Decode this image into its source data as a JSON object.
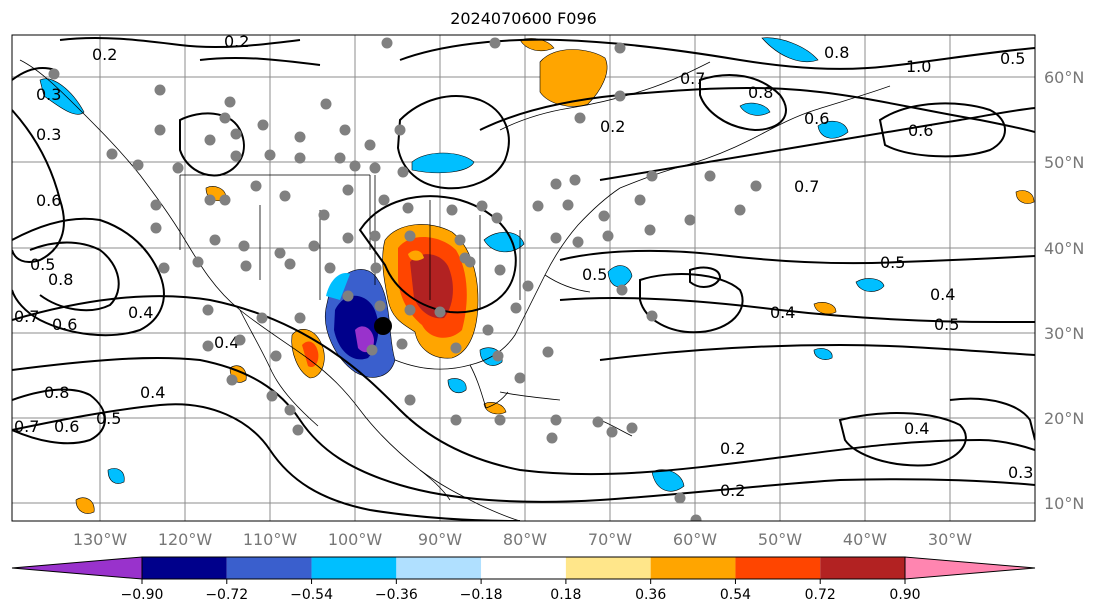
{
  "title": "2024070600 F096",
  "colors": {
    "land_border": "#000000",
    "grid": "#888888",
    "station": "#808080",
    "contour": "#000000",
    "target_marker": "#000000"
  },
  "lon_labels": [
    "130°W",
    "120°W",
    "110°W",
    "100°W",
    "90°W",
    "80°W",
    "70°W",
    "60°W",
    "50°W",
    "40°W",
    "30°W"
  ],
  "lat_labels": [
    "60°N",
    "50°N",
    "40°N",
    "30°N",
    "20°N",
    "10°N"
  ],
  "contour_labels": [
    "0.2",
    "0.2",
    "0.3",
    "0.3",
    "0.4",
    "0.4",
    "0.4",
    "0.4",
    "0.4",
    "0.5",
    "0.5",
    "0.5",
    "0.5",
    "0.5",
    "0.5",
    "0.6",
    "0.6",
    "0.6",
    "0.6",
    "0.7",
    "0.7",
    "0.7",
    "0.7",
    "0.8",
    "0.8",
    "0.8",
    "0.8",
    "1.0",
    "0.2",
    "0.2",
    "0.2",
    "0.3",
    "0.4",
    "0.6"
  ],
  "colorbar": {
    "ticks": [
      "−0.90",
      "−0.72",
      "−0.54",
      "−0.36",
      "−0.18",
      "0.18",
      "0.36",
      "0.54",
      "0.72",
      "0.90"
    ],
    "colors": [
      "#9932cc",
      "#00008b",
      "#3a5fcd",
      "#00bfff",
      "#b0e0ff",
      "#ffffff",
      "#ffe68a",
      "#ffa500",
      "#ff4500",
      "#b22222",
      "#ff85b0"
    ]
  }
}
